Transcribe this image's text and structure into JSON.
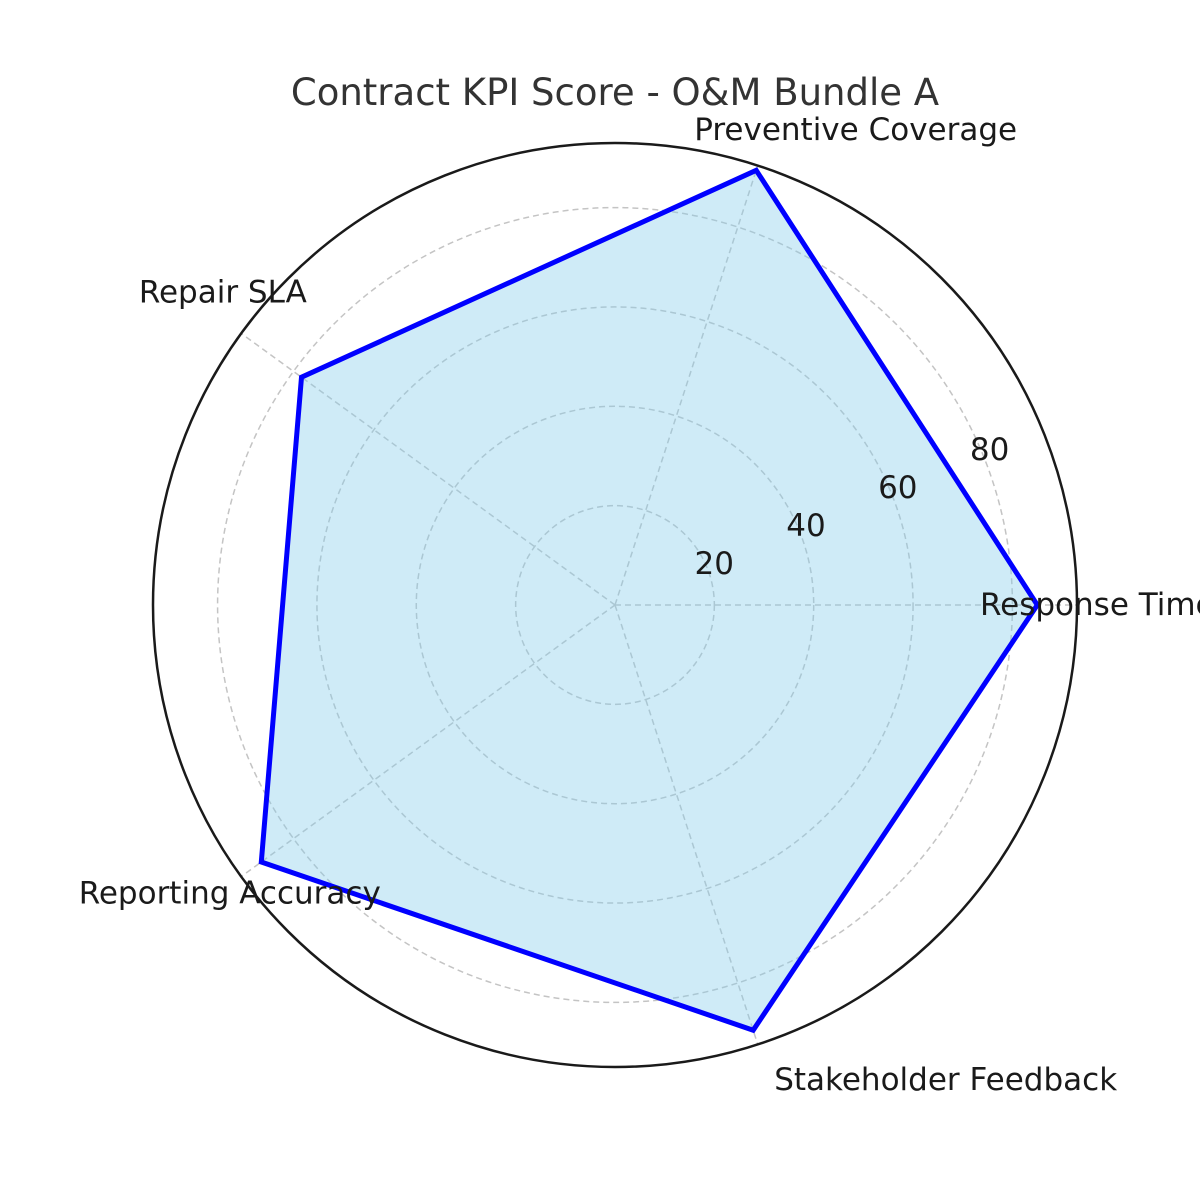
{
  "chart_data": {
    "type": "radar",
    "title": "Contract KPI Score - O&M Bundle A",
    "categories": [
      "Response Time",
      "Preventive Coverage",
      "Repair SLA",
      "Reporting Accuracy",
      "Stakeholder Feedback"
    ],
    "series": [
      {
        "values": [
          85,
          92,
          78,
          88,
          90
        ]
      }
    ],
    "rlim": [
      0,
      93
    ],
    "rticks": [
      20,
      40,
      60,
      80
    ],
    "grid": true,
    "colors": {
      "line": "#0000ff",
      "fill": "#87ceeb",
      "fill_opacity": 0.4
    }
  }
}
